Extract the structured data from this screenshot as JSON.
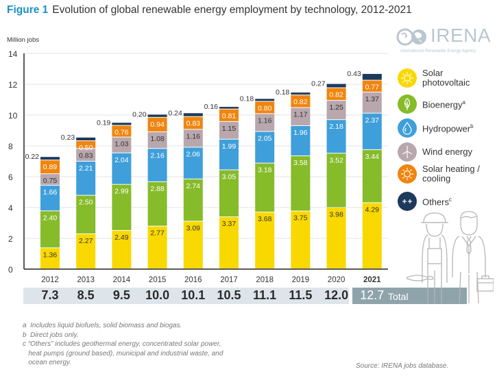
{
  "figure": {
    "label": "Figure 1",
    "title": "Evolution of global renewable energy employment by technology, 2012-2021"
  },
  "logo": {
    "name": "IRENA",
    "subtitle": "International Renewable Energy Agency"
  },
  "colors": {
    "figure_label": "#1a8fc9",
    "solar_pv": "#f9d800",
    "bioenergy": "#86bb2a",
    "hydropower": "#3f9fda",
    "wind": "#b8a7ad",
    "solar_heating": "#f0850f",
    "others": "#1d3a5c",
    "totals_band": "#dde5ea",
    "totals_band_highlight": "#8fa3ab"
  },
  "chart_data": {
    "type": "bar",
    "stacked": true,
    "title": "Evolution of global renewable energy employment by technology, 2012-2021",
    "xlabel": "",
    "ylabel": "Million jobs",
    "ylim": [
      0,
      14
    ],
    "yticks": [
      0,
      2,
      4,
      6,
      8,
      10,
      12,
      14
    ],
    "grid": true,
    "legend_position": "right",
    "categories": [
      "2012",
      "2013",
      "2014",
      "2015",
      "2016",
      "2017",
      "2018",
      "2019",
      "2020",
      "2021"
    ],
    "highlight_category": "2021",
    "series": [
      {
        "name": "Solar photovoltaic",
        "key": "solar_pv",
        "values": [
          1.36,
          2.27,
          2.49,
          2.77,
          3.09,
          3.37,
          3.68,
          3.75,
          3.98,
          4.29
        ]
      },
      {
        "name": "Bioenergy",
        "key": "bioenergy",
        "footnote": "a",
        "values": [
          2.4,
          2.5,
          2.99,
          2.88,
          2.74,
          3.05,
          3.18,
          3.58,
          3.52,
          3.44
        ]
      },
      {
        "name": "Hydropower",
        "key": "hydropower",
        "footnote": "b",
        "values": [
          1.66,
          2.21,
          2.04,
          2.16,
          2.06,
          1.99,
          2.05,
          1.96,
          2.18,
          2.37
        ]
      },
      {
        "name": "Wind energy",
        "key": "wind",
        "values": [
          0.75,
          0.83,
          1.03,
          1.08,
          1.16,
          1.15,
          1.16,
          1.17,
          1.25,
          1.37
        ]
      },
      {
        "name": "Solar heating / cooling",
        "key": "solar_heating",
        "values": [
          0.89,
          0.5,
          0.76,
          0.94,
          0.83,
          0.81,
          0.8,
          0.82,
          0.82,
          0.77
        ]
      },
      {
        "name": "Others",
        "key": "others",
        "footnote": "c",
        "values": [
          0.22,
          0.23,
          0.19,
          0.2,
          0.24,
          0.16,
          0.18,
          0.18,
          0.27,
          0.43
        ]
      }
    ],
    "totals": [
      "7.3",
      "8.5",
      "9.5",
      "10.0",
      "10.1",
      "10.5",
      "11.1",
      "11.5",
      "12.0",
      "12.7"
    ],
    "totals_label": "Total"
  },
  "legend": [
    {
      "label": "Solar\nphotovoltaic",
      "sup": "",
      "icon": "sun-icon",
      "key": "solar_pv"
    },
    {
      "label": "Bioenergy",
      "sup": "a",
      "icon": "leaf-icon",
      "key": "bioenergy"
    },
    {
      "label": "Hydropower",
      "sup": "b",
      "icon": "water-drop-icon",
      "key": "hydropower"
    },
    {
      "label": "Wind energy",
      "sup": "",
      "icon": "wind-turbine-icon",
      "key": "wind"
    },
    {
      "label": "Solar heating /\ncooling",
      "sup": "",
      "icon": "sun-icon",
      "key": "solar_heating"
    },
    {
      "label": "Others",
      "sup": "c",
      "icon": "plus-plus-icon",
      "key": "others"
    }
  ],
  "footnotes": [
    "a  Includes liquid biofuels, solid biomass and biogas.",
    "b  Direct jobs only.",
    "c “Others” includes geothermal energy, concentrated solar power,\n   heat pumps (ground based), municipal and industrial waste, and\n   ocean energy."
  ],
  "source": "Source: IRENA jobs database."
}
